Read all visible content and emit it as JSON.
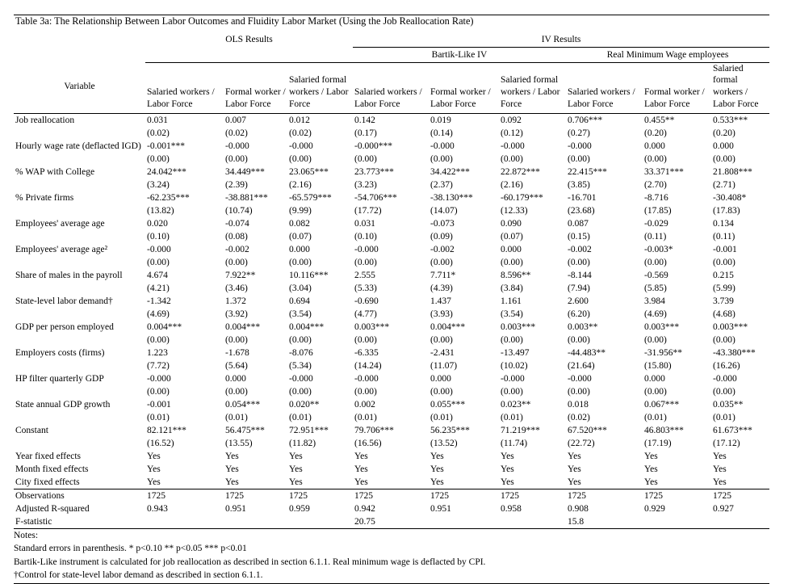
{
  "title": "Table 3a: The Relationship Between Labor Outcomes and Fluidity Labor Market (Using the Job Reallocation Rate)",
  "header": {
    "variable_label": "Variable",
    "ols_label": "OLS Results",
    "iv_label": "IV Results",
    "bartik_label": "Bartik-Like IV",
    "minwage_label": "Real Minimum Wage employees",
    "columns": [
      "Salaried workers / Labor Force",
      "Formal worker / Labor Force",
      "Salaried formal workers / Labor Force",
      "Salaried workers / Labor Force",
      "Formal worker / Labor Force",
      "Salaried formal workers / Labor Force",
      "Salaried workers / Labor Force",
      "Formal worker / Labor Force",
      "Salaried formal workers / Labor Force"
    ]
  },
  "rows": [
    {
      "label": "Job reallocation",
      "coef": [
        "0.031",
        "0.007",
        "0.012",
        "0.142",
        "0.019",
        "0.092",
        "0.706***",
        "0.455**",
        "0.533***"
      ],
      "se": [
        "(0.02)",
        "(0.02)",
        "(0.02)",
        "(0.17)",
        "(0.14)",
        "(0.12)",
        "(0.27)",
        "(0.20)",
        "(0.20)"
      ]
    },
    {
      "label": "Hourly wage rate (deflacted IGD)",
      "coef": [
        "-0.001***",
        "-0.000",
        "-0.000",
        "-0.000***",
        "-0.000",
        "-0.000",
        "-0.000",
        "0.000",
        "0.000"
      ],
      "se": [
        "(0.00)",
        "(0.00)",
        "(0.00)",
        "(0.00)",
        "(0.00)",
        "(0.00)",
        "(0.00)",
        "(0.00)",
        "(0.00)"
      ]
    },
    {
      "label": "% WAP with College",
      "coef": [
        "24.042***",
        "34.449***",
        "23.065***",
        "23.773***",
        "34.422***",
        "22.872***",
        "22.415***",
        "33.371***",
        "21.808***"
      ],
      "se": [
        "(3.24)",
        "(2.39)",
        "(2.16)",
        "(3.23)",
        "(2.37)",
        "(2.16)",
        "(3.85)",
        "(2.70)",
        "(2.71)"
      ]
    },
    {
      "label": "% Private firms",
      "coef": [
        "-62.235***",
        "-38.881***",
        "-65.579***",
        "-54.706***",
        "-38.130***",
        "-60.179***",
        "-16.701",
        "-8.716",
        "-30.408*"
      ],
      "se": [
        "(13.82)",
        "(10.74)",
        "(9.99)",
        "(17.72)",
        "(14.07)",
        "(12.33)",
        "(23.68)",
        "(17.85)",
        "(17.83)"
      ]
    },
    {
      "label": "Employees' average age",
      "coef": [
        "0.020",
        "-0.074",
        "0.082",
        "0.031",
        "-0.073",
        "0.090",
        "0.087",
        "-0.029",
        "0.134"
      ],
      "se": [
        "(0.10)",
        "(0.08)",
        "(0.07)",
        "(0.10)",
        "(0.09)",
        "(0.07)",
        "(0.15)",
        "(0.11)",
        "(0.11)"
      ]
    },
    {
      "label": "Employees' average age²",
      "coef": [
        "-0.000",
        "-0.002",
        "0.000",
        "-0.000",
        "-0.002",
        "0.000",
        "-0.002",
        "-0.003*",
        "-0.001"
      ],
      "se": [
        "(0.00)",
        "(0.00)",
        "(0.00)",
        "(0.00)",
        "(0.00)",
        "(0.00)",
        "(0.00)",
        "(0.00)",
        "(0.00)"
      ]
    },
    {
      "label": "Share of males in the payroll",
      "coef": [
        "4.674",
        "7.922**",
        "10.116***",
        "2.555",
        "7.711*",
        "8.596**",
        "-8.144",
        "-0.569",
        "0.215"
      ],
      "se": [
        "(4.21)",
        "(3.46)",
        "(3.04)",
        "(5.33)",
        "(4.39)",
        "(3.84)",
        "(7.94)",
        "(5.85)",
        "(5.99)"
      ]
    },
    {
      "label": "State-level labor demand†",
      "coef": [
        "-1.342",
        "1.372",
        "0.694",
        "-0.690",
        "1.437",
        "1.161",
        "2.600",
        "3.984",
        "3.739"
      ],
      "se": [
        "(4.69)",
        "(3.92)",
        "(3.54)",
        "(4.77)",
        "(3.93)",
        "(3.54)",
        "(6.20)",
        "(4.69)",
        "(4.68)"
      ]
    },
    {
      "label": "GDP per person employed",
      "coef": [
        "0.004***",
        "0.004***",
        "0.004***",
        "0.003***",
        "0.004***",
        "0.003***",
        "0.003**",
        "0.003***",
        "0.003***"
      ],
      "se": [
        "(0.00)",
        "(0.00)",
        "(0.00)",
        "(0.00)",
        "(0.00)",
        "(0.00)",
        "(0.00)",
        "(0.00)",
        "(0.00)"
      ]
    },
    {
      "label": "Employers costs (firms)",
      "coef": [
        "1.223",
        "-1.678",
        "-8.076",
        "-6.335",
        "-2.431",
        "-13.497",
        "-44.483**",
        "-31.956**",
        "-43.380***"
      ],
      "se": [
        "(7.72)",
        "(5.64)",
        "(5.34)",
        "(14.24)",
        "(11.07)",
        "(10.02)",
        "(21.64)",
        "(15.80)",
        "(16.26)"
      ]
    },
    {
      "label": "HP filter quarterly GDP",
      "coef": [
        "-0.000",
        "0.000",
        "-0.000",
        "-0.000",
        "0.000",
        "-0.000",
        "-0.000",
        "0.000",
        "-0.000"
      ],
      "se": [
        "(0.00)",
        "(0.00)",
        "(0.00)",
        "(0.00)",
        "(0.00)",
        "(0.00)",
        "(0.00)",
        "(0.00)",
        "(0.00)"
      ]
    },
    {
      "label": "State annual GDP growth",
      "coef": [
        "-0.001",
        "0.054***",
        "0.020**",
        "0.002",
        "0.055***",
        "0.023**",
        "0.018",
        "0.067***",
        "0.035**"
      ],
      "se": [
        "(0.01)",
        "(0.01)",
        "(0.01)",
        "(0.01)",
        "(0.01)",
        "(0.01)",
        "(0.02)",
        "(0.01)",
        "(0.01)"
      ]
    },
    {
      "label": "Constant",
      "coef": [
        "82.121***",
        "56.475***",
        "72.951***",
        "79.706***",
        "56.235***",
        "71.219***",
        "67.520***",
        "46.803***",
        "61.673***"
      ],
      "se": [
        "(16.52)",
        "(13.55)",
        "(11.82)",
        "(16.56)",
        "(13.52)",
        "(11.74)",
        "(22.72)",
        "(17.19)",
        "(17.12)"
      ]
    }
  ],
  "fixed_effects": [
    {
      "label": "Year fixed effects",
      "values": [
        "Yes",
        "Yes",
        "Yes",
        "Yes",
        "Yes",
        "Yes",
        "Yes",
        "Yes",
        "Yes"
      ]
    },
    {
      "label": "Month fixed effects",
      "values": [
        "Yes",
        "Yes",
        "Yes",
        "Yes",
        "Yes",
        "Yes",
        "Yes",
        "Yes",
        "Yes"
      ]
    },
    {
      "label": "City fixed effects",
      "values": [
        "Yes",
        "Yes",
        "Yes",
        "Yes",
        "Yes",
        "Yes",
        "Yes",
        "Yes",
        "Yes"
      ]
    }
  ],
  "stats": {
    "observations": {
      "label": "Observations",
      "values": [
        "1725",
        "1725",
        "1725",
        "1725",
        "1725",
        "1725",
        "1725",
        "1725",
        "1725"
      ]
    },
    "adj_r_squared": {
      "label": "Adjusted R-squared",
      "values": [
        "0.943",
        "0.951",
        "0.959",
        "0.942",
        "0.951",
        "0.958",
        "0.908",
        "0.929",
        "0.927"
      ]
    },
    "f_statistic": {
      "label": "F-statistic",
      "bartik_value": "20.75",
      "minwage_value": "15.8"
    }
  },
  "notes": [
    "Notes:",
    "Standard errors in parenthesis.  * p<0.10  ** p<0.05  *** p<0.01",
    "Bartik-Like instrument is calculated for job reallocation as described in section 6.1.1. Real minimum wage is deflacted by CPI.",
    "†Control for state-level labor demand as described in section 6.1.1."
  ]
}
